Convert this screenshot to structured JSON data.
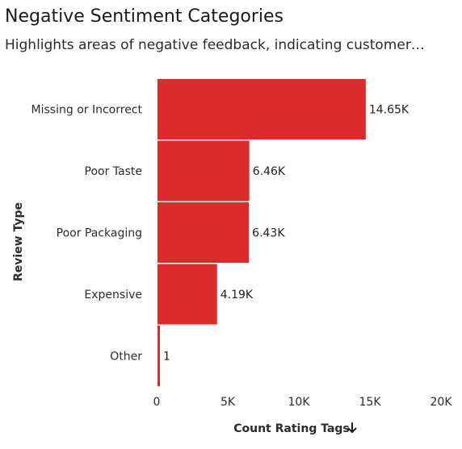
{
  "header": {
    "title": "Negative Sentiment Categories",
    "subtitle": "Highlights areas of negative feedback, indicating customer…"
  },
  "chart_data": {
    "type": "bar",
    "orientation": "horizontal",
    "categories": [
      "Missing or Incorrect",
      "Poor Taste",
      "Poor Packaging",
      "Expensive",
      "Other"
    ],
    "values": [
      14650,
      6460,
      6430,
      4190,
      1
    ],
    "value_labels": [
      "14.65K",
      "6.46K",
      "6.43K",
      "4.19K",
      "1"
    ],
    "xlabel": "Count Rating Tags",
    "ylabel": "Review Type",
    "xlim": [
      0,
      20000
    ],
    "x_ticks": [
      0,
      5000,
      10000,
      15000,
      20000
    ],
    "x_tick_labels": [
      "0",
      "5K",
      "10K",
      "15K",
      "20K"
    ],
    "bar_color": "#dc2b2b",
    "grid": false,
    "legend": "none",
    "sort_icon": "arrow-down-icon"
  }
}
